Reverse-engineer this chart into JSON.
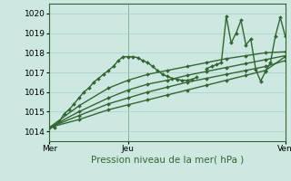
{
  "xlabel": "Pression niveau de la mer( hPa )",
  "ylim": [
    1013.5,
    1020.5
  ],
  "xlim": [
    0,
    48
  ],
  "xtick_positions": [
    0,
    16,
    48
  ],
  "xtick_labels": [
    "Mer",
    "Jeu",
    "Ven"
  ],
  "ytick_positions": [
    1014,
    1015,
    1016,
    1017,
    1018,
    1019,
    1020
  ],
  "ytick_labels": [
    "1014",
    "1015",
    "1016",
    "1017",
    "1018",
    "1019",
    "1020"
  ],
  "bg_color": "#cce8e0",
  "grid_color": "#aaccc4",
  "line_color": "#336633",
  "vline_positions": [
    0,
    16,
    48
  ],
  "series": [
    {
      "x": [
        0,
        1,
        2,
        3,
        4,
        5,
        6,
        7,
        8,
        9,
        10,
        11,
        12,
        13,
        14,
        15,
        16,
        17,
        18,
        19,
        20,
        21,
        22,
        23,
        24,
        25,
        26,
        27,
        28,
        29,
        30
      ],
      "y": [
        1014.2,
        1014.2,
        1014.5,
        1014.9,
        1015.1,
        1015.4,
        1015.7,
        1016.0,
        1016.2,
        1016.5,
        1016.7,
        1016.9,
        1017.1,
        1017.3,
        1017.6,
        1017.8,
        1017.8,
        1017.8,
        1017.75,
        1017.6,
        1017.5,
        1017.3,
        1017.1,
        1016.9,
        1016.8,
        1016.7,
        1016.65,
        1016.6,
        1016.6,
        1016.65,
        1016.75
      ],
      "marker": "D",
      "markersize": 2.0,
      "linewidth": 1.0,
      "has_markers": true
    },
    {
      "x": [
        0,
        6,
        12,
        16,
        20,
        24,
        28,
        32,
        36,
        40,
        44,
        48
      ],
      "y": [
        1014.2,
        1015.3,
        1016.2,
        1016.6,
        1016.9,
        1017.1,
        1017.3,
        1017.5,
        1017.7,
        1017.85,
        1018.0,
        1018.05
      ],
      "marker": "D",
      "markersize": 2.0,
      "linewidth": 1.0,
      "has_markers": true
    },
    {
      "x": [
        0,
        6,
        12,
        16,
        20,
        24,
        28,
        32,
        36,
        40,
        44,
        48
      ],
      "y": [
        1014.2,
        1015.0,
        1015.7,
        1016.1,
        1016.4,
        1016.6,
        1016.85,
        1017.05,
        1017.25,
        1017.45,
        1017.65,
        1017.85
      ],
      "marker": "D",
      "markersize": 2.0,
      "linewidth": 1.0,
      "has_markers": true
    },
    {
      "x": [
        0,
        6,
        12,
        16,
        20,
        24,
        28,
        32,
        36,
        40,
        44,
        48
      ],
      "y": [
        1014.2,
        1014.8,
        1015.4,
        1015.7,
        1016.0,
        1016.25,
        1016.5,
        1016.7,
        1016.9,
        1017.1,
        1017.3,
        1017.6
      ],
      "marker": "D",
      "markersize": 2.0,
      "linewidth": 1.0,
      "has_markers": true
    },
    {
      "x": [
        0,
        6,
        12,
        16,
        20,
        24,
        28,
        32,
        36,
        40,
        44,
        48
      ],
      "y": [
        1014.2,
        1014.6,
        1015.1,
        1015.35,
        1015.6,
        1015.85,
        1016.1,
        1016.35,
        1016.6,
        1016.85,
        1017.1,
        1017.8
      ],
      "marker": "D",
      "markersize": 2.0,
      "linewidth": 1.0,
      "has_markers": true
    },
    {
      "x": [
        32,
        33,
        34,
        35,
        36,
        37,
        38,
        39,
        40,
        41,
        42,
        43,
        44,
        45,
        46,
        47,
        48
      ],
      "y": [
        1017.2,
        1017.3,
        1017.4,
        1017.5,
        1019.85,
        1018.5,
        1019.0,
        1019.65,
        1018.4,
        1018.7,
        1017.15,
        1016.55,
        1017.05,
        1017.5,
        1018.85,
        1019.8,
        1018.85
      ],
      "marker": "D",
      "markersize": 2.0,
      "linewidth": 1.0,
      "has_markers": true
    }
  ]
}
